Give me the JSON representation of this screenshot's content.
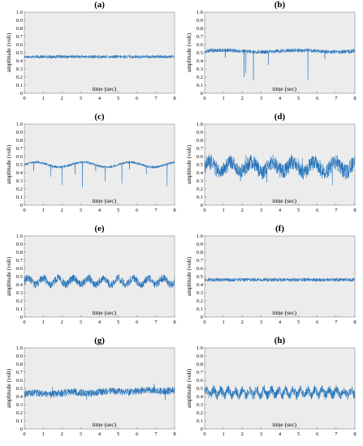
{
  "chart_data": [
    {
      "type": "line",
      "panel_label": "(a)",
      "xlabel": "time (sec)",
      "ylabel": "amplitude (volt)",
      "xlim": [
        0,
        8
      ],
      "ylim": [
        0,
        1
      ],
      "x_ticks": [
        "0",
        "1",
        "2",
        "3",
        "4",
        "5",
        "6",
        "7",
        "8"
      ],
      "y_ticks": [
        "0",
        "0.1",
        "0.2",
        "0.3",
        "0.4",
        "0.5",
        "0.6",
        "0.7",
        "0.8",
        "0.9",
        "1.0"
      ],
      "grid": false,
      "color": "#1f6fb8",
      "signal": {
        "baseline": 0.45,
        "noise": 0.012,
        "wave_amplitude": 0,
        "wave_frequency": 0,
        "drift": 0,
        "spikes": []
      }
    },
    {
      "type": "line",
      "panel_label": "(b)",
      "xlabel": "time (sec)",
      "ylabel": "amplitude (volt)",
      "xlim": [
        0,
        8
      ],
      "ylim": [
        0,
        1
      ],
      "x_ticks": [
        "0",
        "1",
        "2",
        "3",
        "4",
        "5",
        "6",
        "7",
        "8"
      ],
      "y_ticks": [
        "0",
        "0.1",
        "0.2",
        "0.3",
        "0.4",
        "0.5",
        "0.6",
        "0.7",
        "0.8",
        "0.9",
        "1.0"
      ],
      "grid": false,
      "color": "#1f6fb8",
      "signal": {
        "baseline": 0.52,
        "noise": 0.015,
        "wave_amplitude": 0.01,
        "wave_frequency": 0.25,
        "drift": 0,
        "spikes": [
          {
            "t": 1.1,
            "v": 0.44
          },
          {
            "t": 2.1,
            "v": 0.2
          },
          {
            "t": 2.2,
            "v": 0.25
          },
          {
            "t": 2.6,
            "v": 0.16
          },
          {
            "t": 3.4,
            "v": 0.35
          },
          {
            "t": 5.5,
            "v": 0.16
          },
          {
            "t": 6.4,
            "v": 0.42
          }
        ]
      }
    },
    {
      "type": "line",
      "panel_label": "(c)",
      "xlabel": "time (sec)",
      "ylabel": "amplitude (volt)",
      "xlim": [
        0,
        8
      ],
      "ylim": [
        0,
        1
      ],
      "x_ticks": [
        "0",
        "1",
        "2",
        "3",
        "4",
        "5",
        "6",
        "7",
        "8"
      ],
      "y_ticks": [
        "0",
        "0.1",
        "0.2",
        "0.3",
        "0.4",
        "0.5",
        "0.6",
        "0.7",
        "0.8",
        "0.9",
        "1.0"
      ],
      "grid": false,
      "color": "#1f6fb8",
      "signal": {
        "baseline": 0.5,
        "noise": 0.01,
        "wave_amplitude": 0.03,
        "wave_frequency": 0.4,
        "drift": 0,
        "spikes": [
          {
            "t": 0.5,
            "v": 0.42
          },
          {
            "t": 1.4,
            "v": 0.35
          },
          {
            "t": 1.5,
            "v": 0.45
          },
          {
            "t": 2.0,
            "v": 0.25
          },
          {
            "t": 2.7,
            "v": 0.38
          },
          {
            "t": 3.1,
            "v": 0.22
          },
          {
            "t": 3.8,
            "v": 0.42
          },
          {
            "t": 4.3,
            "v": 0.3
          },
          {
            "t": 5.2,
            "v": 0.27
          },
          {
            "t": 5.6,
            "v": 0.44
          },
          {
            "t": 6.5,
            "v": 0.38
          },
          {
            "t": 7.6,
            "v": 0.23
          }
        ]
      }
    },
    {
      "type": "line",
      "panel_label": "(d)",
      "xlabel": "time (sec)",
      "ylabel": "amplitude (volt)",
      "xlim": [
        0,
        8
      ],
      "ylim": [
        0,
        1
      ],
      "x_ticks": [
        "0",
        "1",
        "2",
        "3",
        "4",
        "5",
        "6",
        "7",
        "8"
      ],
      "y_ticks": [
        "0",
        "0.1",
        "0.2",
        "0.3",
        "0.4",
        "0.5",
        "0.6",
        "0.7",
        "0.8",
        "0.9",
        "1.0"
      ],
      "grid": false,
      "color": "#1f6fb8",
      "signal": {
        "baseline": 0.47,
        "noise": 0.06,
        "wave_amplitude": 0.06,
        "wave_frequency": 0.9,
        "drift": 0,
        "spikes": [
          {
            "t": 2.2,
            "v": 0.62
          },
          {
            "t": 1.9,
            "v": 0.3
          },
          {
            "t": 3.3,
            "v": 0.28
          },
          {
            "t": 5.2,
            "v": 0.58
          },
          {
            "t": 6.8,
            "v": 0.24
          }
        ]
      }
    },
    {
      "type": "line",
      "panel_label": "(e)",
      "xlabel": "time (sec)",
      "ylabel": "amplitude (volt)",
      "xlim": [
        0,
        8
      ],
      "ylim": [
        0,
        1
      ],
      "x_ticks": [
        "0",
        "1",
        "2",
        "3",
        "4",
        "5",
        "6",
        "7",
        "8"
      ],
      "y_ticks": [
        "0",
        "0.1",
        "0.2",
        "0.3",
        "0.4",
        "0.5",
        "0.6",
        "0.7",
        "0.8",
        "0.9",
        "1.0"
      ],
      "grid": false,
      "color": "#1f6fb8",
      "signal": {
        "baseline": 0.44,
        "noise": 0.03,
        "wave_amplitude": 0.04,
        "wave_frequency": 1.25,
        "drift": 0,
        "spikes": []
      }
    },
    {
      "type": "line",
      "panel_label": "(f)",
      "xlabel": "time (sec)",
      "ylabel": "amplitude (volt)",
      "xlim": [
        0,
        8
      ],
      "ylim": [
        0,
        1
      ],
      "x_ticks": [
        "0",
        "1",
        "2",
        "3",
        "4",
        "5",
        "6",
        "7",
        "8"
      ],
      "y_ticks": [
        "0",
        "0.1",
        "0.2",
        "0.3",
        "0.4",
        "0.5",
        "0.6",
        "0.7",
        "0.8",
        "0.9",
        "1.0"
      ],
      "grid": false,
      "color": "#1f6fb8",
      "signal": {
        "baseline": 0.46,
        "noise": 0.014,
        "wave_amplitude": 0,
        "wave_frequency": 0,
        "drift": 0,
        "spikes": []
      }
    },
    {
      "type": "line",
      "panel_label": "(g)",
      "xlabel": "time (sec)",
      "ylabel": "amplitude (volt)",
      "xlim": [
        0,
        8
      ],
      "ylim": [
        0,
        1
      ],
      "x_ticks": [
        "0",
        "1",
        "2",
        "3",
        "4",
        "5",
        "6",
        "7",
        "8"
      ],
      "y_ticks": [
        "0",
        "0.1",
        "0.2",
        "0.3",
        "0.4",
        "0.5",
        "0.6",
        "0.7",
        "0.8",
        "0.9",
        "1.0"
      ],
      "grid": false,
      "color": "#1f6fb8",
      "signal": {
        "baseline": 0.43,
        "noise": 0.028,
        "wave_amplitude": 0.01,
        "wave_frequency": 0.5,
        "drift": 0.05,
        "spikes": [
          {
            "t": 1.5,
            "v": 0.52
          },
          {
            "t": 3.3,
            "v": 0.36
          },
          {
            "t": 6.9,
            "v": 0.56
          },
          {
            "t": 7.5,
            "v": 0.36
          }
        ]
      }
    },
    {
      "type": "line",
      "panel_label": "(h)",
      "xlabel": "time (sec)",
      "ylabel": "amplitude (volt)",
      "xlim": [
        0,
        8
      ],
      "ylim": [
        0,
        1
      ],
      "x_ticks": [
        "0",
        "1",
        "2",
        "3",
        "4",
        "5",
        "6",
        "7",
        "8"
      ],
      "y_ticks": [
        "0",
        "0.1",
        "0.2",
        "0.3",
        "0.4",
        "0.5",
        "0.6",
        "0.7",
        "0.8",
        "0.9",
        "1.0"
      ],
      "grid": false,
      "color": "#1f6fb8",
      "signal": {
        "baseline": 0.45,
        "noise": 0.035,
        "wave_amplitude": 0.035,
        "wave_frequency": 2.6,
        "drift": 0,
        "spikes": []
      }
    }
  ]
}
